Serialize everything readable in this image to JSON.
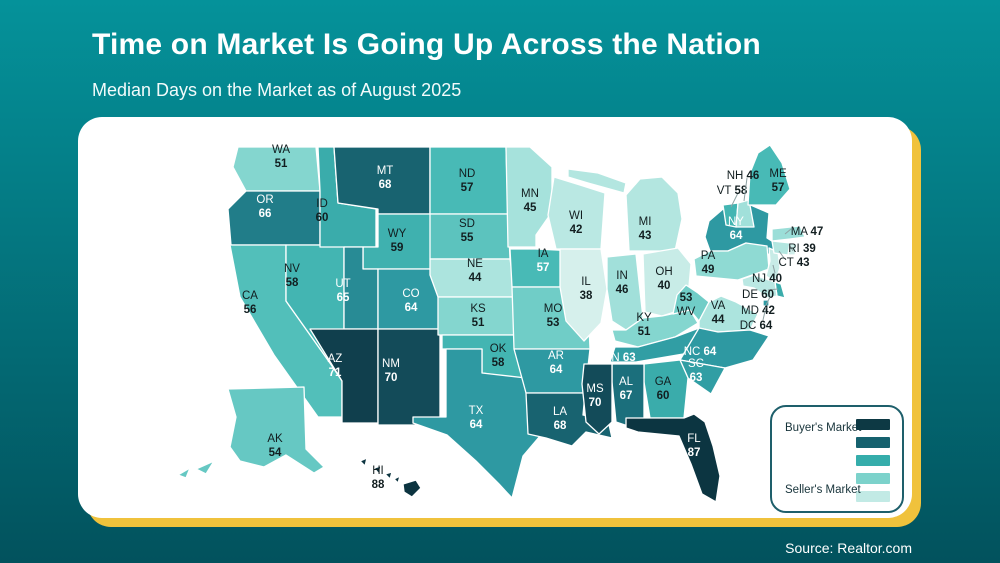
{
  "header": {
    "title": "Time on Market Is Going Up Across the Nation",
    "subtitle": "Median Days on the Market as of August 2025"
  },
  "footer": {
    "source": "Source: Realtor.com"
  },
  "legend": {
    "buyer_label": "Buyer's Market",
    "seller_label": "Seller's Market",
    "swatches": [
      "#0d3944",
      "#15616e",
      "#35adab",
      "#7cd2cb",
      "#c2eae5"
    ]
  },
  "colors": {
    "background_top": "#05929a",
    "background_bottom": "#02525d",
    "card": "#ffffff",
    "accent_yellow": "#f0c23c",
    "legend_border": "#1e5f6b",
    "label_dark": "#121e20",
    "label_light": "#ffffff"
  },
  "chart_data": {
    "type": "heatmap",
    "subtype": "us-choropleth",
    "title": "Time on Market Is Going Up Across the Nation",
    "subtitle": "Median Days on the Market as of August 2025",
    "unit": "median days on market",
    "value_range": [
      38,
      88
    ],
    "legend": {
      "high_end": "Buyer's Market",
      "low_end": "Seller's Market"
    },
    "color_scale": [
      [
        38,
        "#d6f0ec"
      ],
      [
        44,
        "#ace4de"
      ],
      [
        51,
        "#84d6cf"
      ],
      [
        57,
        "#48bab6"
      ],
      [
        60,
        "#3aacab"
      ],
      [
        64,
        "#2e99a2"
      ],
      [
        67,
        "#1b6f7c"
      ],
      [
        71,
        "#103f4d"
      ],
      [
        88,
        "#0c3440"
      ]
    ],
    "states": [
      {
        "state": "WA",
        "value": 51
      },
      {
        "state": "OR",
        "value": 66
      },
      {
        "state": "CA",
        "value": 56
      },
      {
        "state": "NV",
        "value": 58
      },
      {
        "state": "ID",
        "value": 60
      },
      {
        "state": "MT",
        "value": 68
      },
      {
        "state": "WY",
        "value": 59
      },
      {
        "state": "UT",
        "value": 65
      },
      {
        "state": "CO",
        "value": 64
      },
      {
        "state": "AZ",
        "value": 71
      },
      {
        "state": "NM",
        "value": 70
      },
      {
        "state": "ND",
        "value": 57
      },
      {
        "state": "SD",
        "value": 55
      },
      {
        "state": "NE",
        "value": 44
      },
      {
        "state": "KS",
        "value": 51
      },
      {
        "state": "OK",
        "value": 58
      },
      {
        "state": "TX",
        "value": 64
      },
      {
        "state": "MN",
        "value": 45
      },
      {
        "state": "IA",
        "value": 57
      },
      {
        "state": "MO",
        "value": 53
      },
      {
        "state": "AR",
        "value": 64
      },
      {
        "state": "LA",
        "value": 68
      },
      {
        "state": "WI",
        "value": 42
      },
      {
        "state": "IL",
        "value": 38
      },
      {
        "state": "IN",
        "value": 46
      },
      {
        "state": "MI",
        "value": 43
      },
      {
        "state": "OH",
        "value": 40
      },
      {
        "state": "KY",
        "value": 51
      },
      {
        "state": "WV",
        "value": 53
      },
      {
        "state": "VA",
        "value": 44
      },
      {
        "state": "TN",
        "value": 63
      },
      {
        "state": "NC",
        "value": 64
      },
      {
        "state": "SC",
        "value": 63
      },
      {
        "state": "GA",
        "value": 60
      },
      {
        "state": "AL",
        "value": 67
      },
      {
        "state": "MS",
        "value": 70
      },
      {
        "state": "FL",
        "value": 87
      },
      {
        "state": "NY",
        "value": 64
      },
      {
        "state": "PA",
        "value": 49
      },
      {
        "state": "NJ",
        "value": 40
      },
      {
        "state": "DE",
        "value": 60
      },
      {
        "state": "MD",
        "value": 42
      },
      {
        "state": "DC",
        "value": 64
      },
      {
        "state": "CT",
        "value": 43
      },
      {
        "state": "RI",
        "value": 39
      },
      {
        "state": "MA",
        "value": 47
      },
      {
        "state": "VT",
        "value": 58
      },
      {
        "state": "NH",
        "value": 46
      },
      {
        "state": "ME",
        "value": 57
      },
      {
        "state": "AK",
        "value": 54
      },
      {
        "state": "HI",
        "value": 88
      }
    ]
  }
}
